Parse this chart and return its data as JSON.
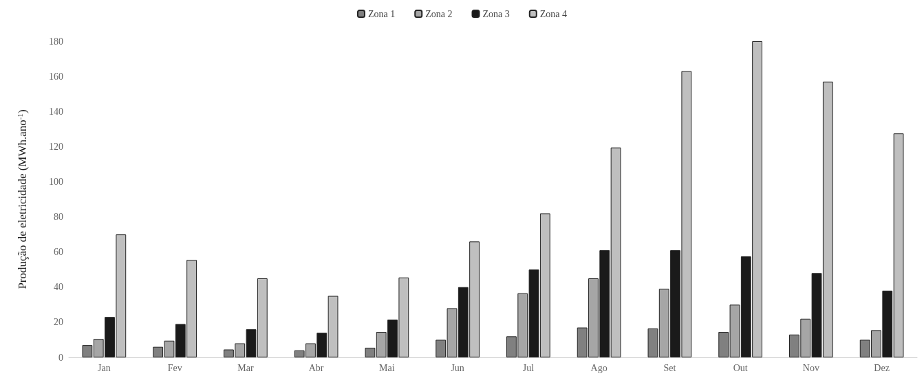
{
  "chart_data": {
    "type": "bar",
    "ylabel": "Produção de eletricidade (MWh.ano$^{-1}$)",
    "categories": [
      "Jan",
      "Fev",
      "Mar",
      "Abr",
      "Mai",
      "Jun",
      "Jul",
      "Ago",
      "Set",
      "Out",
      "Nov",
      "Dez"
    ],
    "series": [
      {
        "name": "Zona 1",
        "color": "#808080",
        "values": [
          7,
          6,
          4.5,
          4,
          5.5,
          10,
          12,
          17,
          16.5,
          14.5,
          13,
          10
        ]
      },
      {
        "name": "Zona 2",
        "color": "#a6a6a6",
        "values": [
          10.5,
          9.5,
          8,
          8,
          14.5,
          28,
          36.5,
          45,
          39,
          30,
          22,
          15.5
        ]
      },
      {
        "name": "Zona 3",
        "color": "#1a1a1a",
        "values": [
          23,
          19,
          16,
          14,
          21.5,
          40,
          50,
          61,
          61,
          57.5,
          48,
          38
        ]
      },
      {
        "name": "Zona 4",
        "color": "#bfbfbf",
        "values": [
          70,
          55.5,
          45,
          35,
          45.5,
          66,
          82,
          119.5,
          163,
          180,
          157,
          127.5
        ]
      }
    ],
    "ylim": [
      0,
      180
    ],
    "yticks": [
      0,
      20,
      40,
      60,
      80,
      100,
      120,
      140,
      160,
      180
    ],
    "grid": false,
    "legend": "top"
  }
}
